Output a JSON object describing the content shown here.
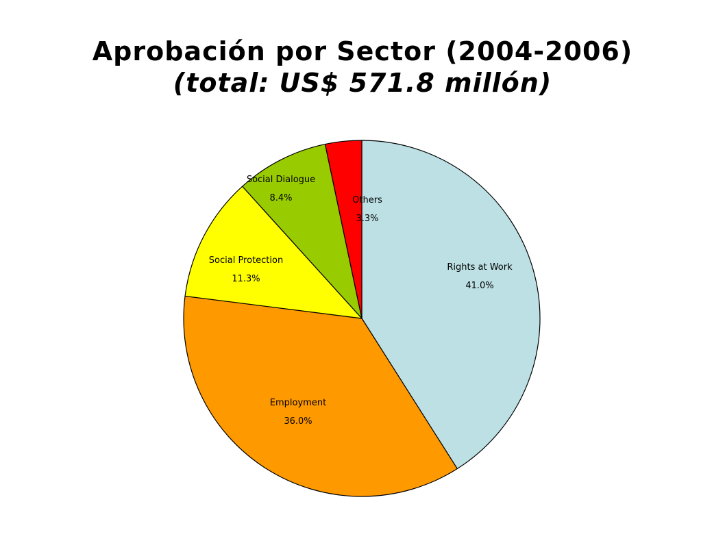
{
  "chart_data": {
    "type": "pie",
    "title": "Aprobación por Sector (2004-2006)",
    "subtitle": "(total: US$ 571.8 millón)",
    "slices": [
      {
        "name": "Rights at Work",
        "value": 41.0,
        "label": "41.0%",
        "color": "#BCE0E4"
      },
      {
        "name": "Employment",
        "value": 36.0,
        "label": "36.0%",
        "color": "#FF9900"
      },
      {
        "name": "Social Protection",
        "value": 11.3,
        "label": "11.3%",
        "color": "#FFFF00"
      },
      {
        "name": "Social Dialogue",
        "value": 8.4,
        "label": "8.4%",
        "color": "#99CC00"
      },
      {
        "name": "Others",
        "value": 3.3,
        "label": "3.3%",
        "color": "#FF0000"
      }
    ],
    "start": "12 o'clock",
    "direction": "clockwise",
    "legend": "none"
  }
}
